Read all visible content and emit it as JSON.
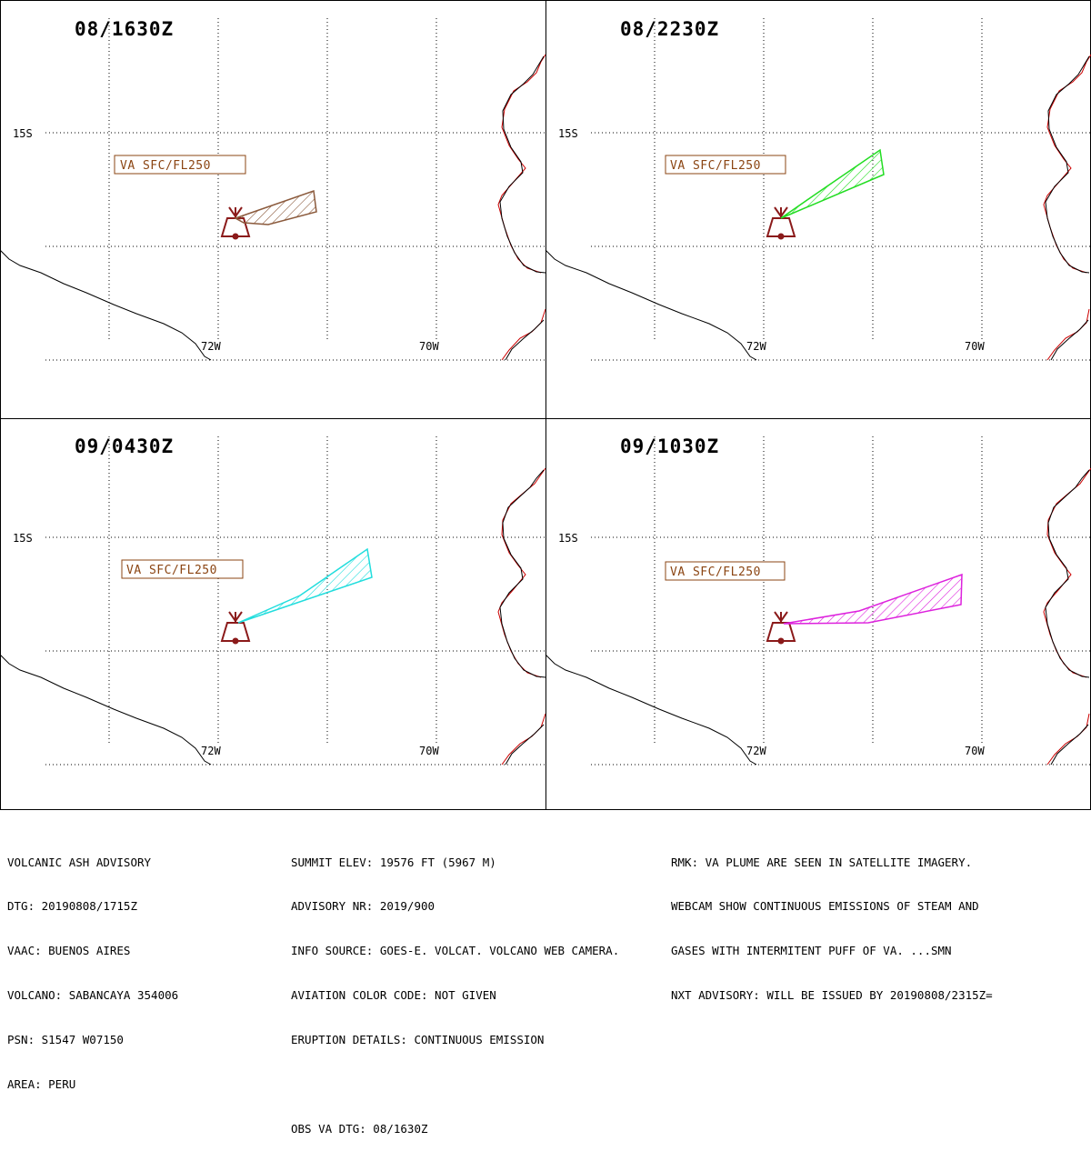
{
  "panels": [
    {
      "title": "08/1630Z",
      "va_label": "VA SFC/FL250",
      "color": "#8b5a3c"
    },
    {
      "title": "08/2230Z",
      "va_label": "VA SFC/FL250",
      "color": "#22dd22"
    },
    {
      "title": "09/0430Z",
      "va_label": "VA SFC/FL250",
      "color": "#22dddd"
    },
    {
      "title": "09/1030Z",
      "va_label": "VA SFC/FL250",
      "color": "#dd22dd"
    }
  ],
  "axis_labels": {
    "lat": "15S",
    "lon_west": "72W",
    "lon_east": "70W"
  },
  "colors": {
    "volcano": "#8b1a1a",
    "va_label_border": "#8b4513",
    "coast_black": "#000000",
    "coast_red": "#cc0000"
  },
  "advisory": {
    "col1": [
      "VOLCANIC ASH ADVISORY",
      "DTG: 20190808/1715Z",
      "VAAC: BUENOS AIRES",
      "VOLCANO: SABANCAYA 354006",
      "PSN: S1547 W07150",
      "AREA: PERU"
    ],
    "col2": [
      "SUMMIT ELEV: 19576 FT (5967 M)",
      "ADVISORY NR: 2019/900",
      "INFO SOURCE: GOES-E. VOLCAT. VOLCANO WEB CAMERA.",
      "AVIATION COLOR CODE: NOT GIVEN",
      "ERUPTION DETAILS: CONTINUOUS EMISSION"
    ],
    "col2_obs": "OBS VA DTG: 08/1630Z",
    "col3": [
      "RMK: VA PLUME ARE SEEN IN SATELLITE IMAGERY.",
      "WEBCAM SHOW CONTINUOUS EMISSIONS OF STEAM AND",
      "GASES WITH INTERMITENT PUFF OF VA. ...SMN",
      "NXT ADVISORY: WILL BE ISSUED BY 20190808/2315Z="
    ]
  }
}
